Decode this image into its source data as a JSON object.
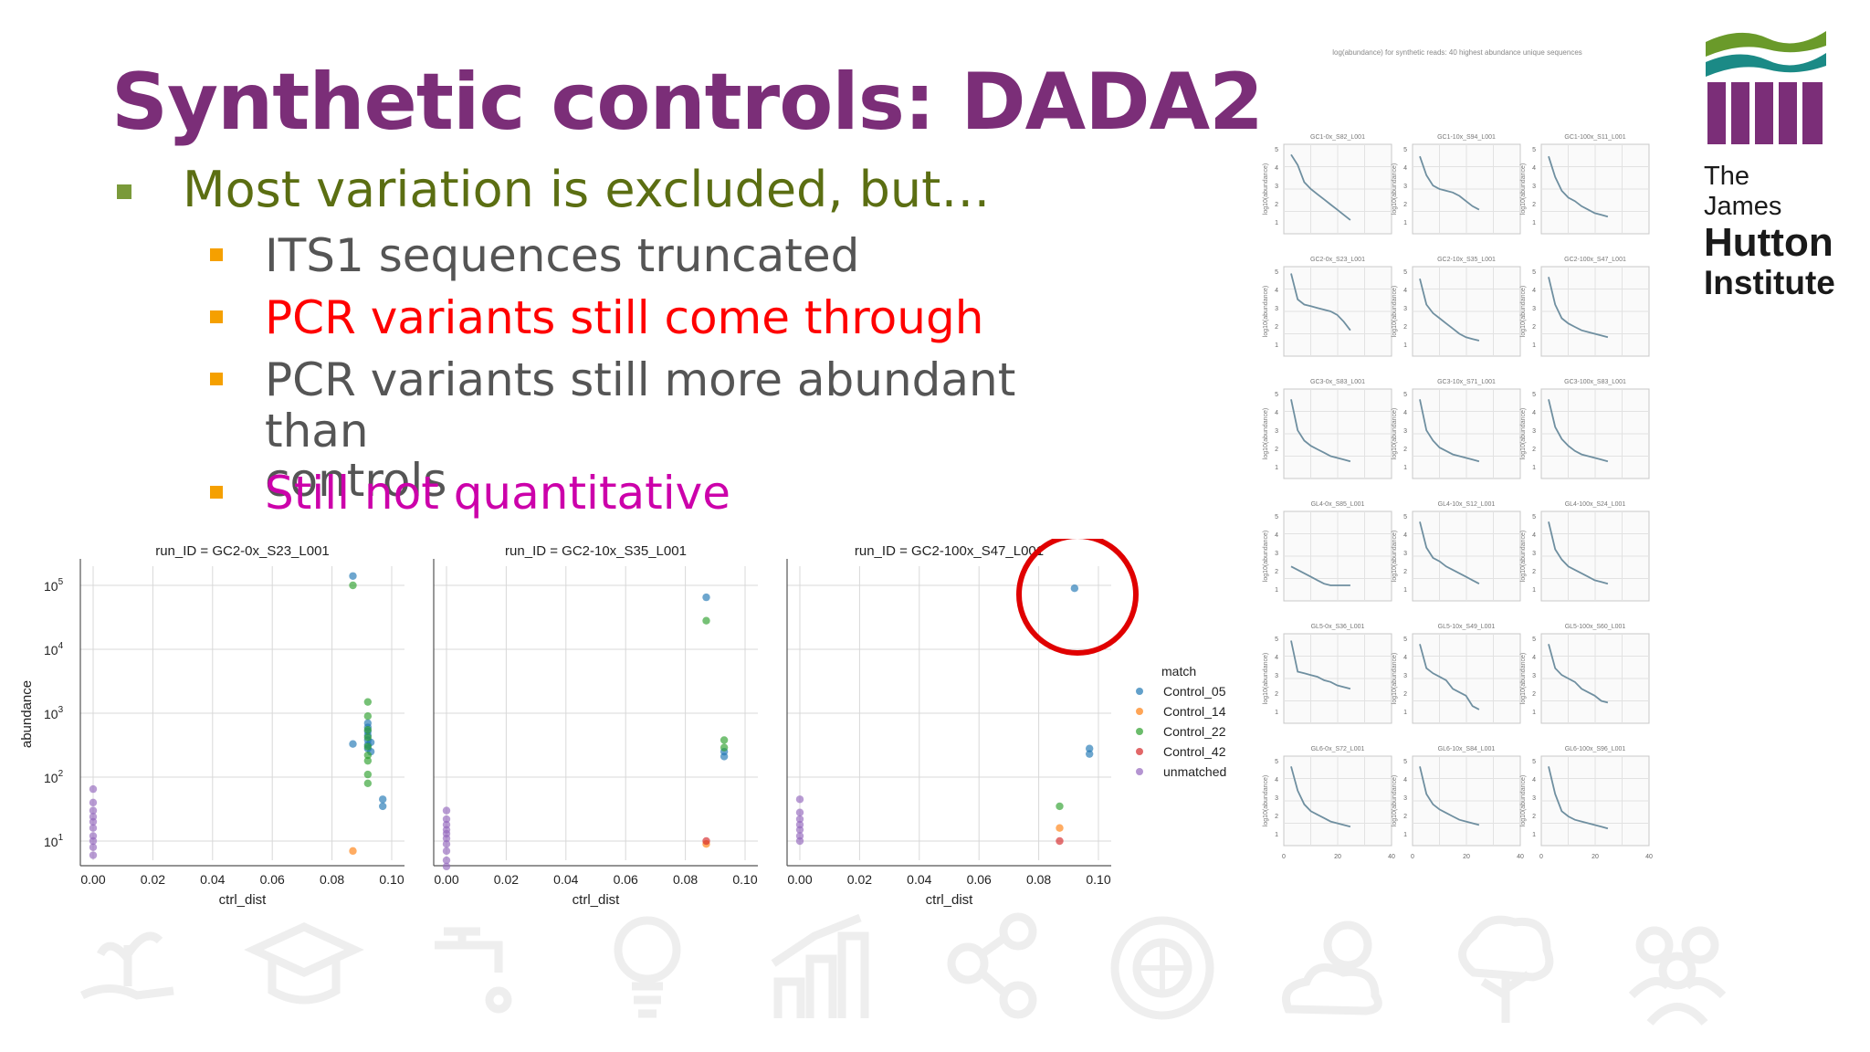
{
  "slide": {
    "title": "Synthetic controls: DADA2",
    "title_color": "#7b2e78"
  },
  "bullets": [
    {
      "level": 1,
      "text": "Most variation is excluded, but…",
      "color": "#5b6e12",
      "marker_color": "#7a9a3a"
    },
    {
      "level": 2,
      "text": "ITS1 sequences truncated",
      "color": "#555555",
      "marker_color": "#f5a000"
    },
    {
      "level": 2,
      "text": "PCR variants still come through",
      "color": "#ff0000",
      "marker_color": "#f5a000"
    },
    {
      "level": 2,
      "text": "PCR variants still more abundant than",
      "text2": "controls",
      "color": "#555555",
      "marker_color": "#f5a000"
    },
    {
      "level": 2,
      "text": "Still not quantitative",
      "color": "#cc00aa",
      "marker_color": "#f5a000"
    }
  ],
  "scatter_figure": {
    "ylabel": "abundance",
    "xlabel": "ctrl_dist",
    "x_ticks": [
      "0.00",
      "0.02",
      "0.04",
      "0.06",
      "0.08",
      "0.10"
    ],
    "y_ticks": [
      {
        "base": "10",
        "exp": "5",
        "value": 100000
      },
      {
        "base": "10",
        "exp": "4",
        "value": 10000
      },
      {
        "base": "10",
        "exp": "3",
        "value": 1000
      },
      {
        "base": "10",
        "exp": "2",
        "value": 100
      },
      {
        "base": "10",
        "exp": "1",
        "value": 10
      }
    ],
    "legend": {
      "title": "match",
      "entries": [
        {
          "label": "Control_05",
          "color": "#1f77b4"
        },
        {
          "label": "Control_14",
          "color": "#ff7f0e"
        },
        {
          "label": "Control_22",
          "color": "#2ca02c"
        },
        {
          "label": "Control_42",
          "color": "#d62728"
        },
        {
          "label": "unmatched",
          "color": "#9467bd"
        }
      ]
    },
    "highlight_circle_color": "#e00000"
  },
  "chart_data": [
    {
      "type": "scatter",
      "title": "run_ID = GC2-0x_S23_L001",
      "xlabel": "ctrl_dist",
      "ylabel": "abundance",
      "xlim": [
        0,
        0.1
      ],
      "ylim_log10": [
        0.7,
        5.3
      ],
      "y_scale": "log",
      "series": [
        {
          "name": "Control_05",
          "points": [
            [
              0.087,
              140000
            ],
            [
              0.092,
              700
            ],
            [
              0.092,
              600
            ],
            [
              0.092,
              520
            ],
            [
              0.092,
              450
            ],
            [
              0.092,
              380
            ],
            [
              0.092,
              320
            ],
            [
              0.092,
              280
            ],
            [
              0.093,
              250
            ],
            [
              0.093,
              350
            ],
            [
              0.087,
              330
            ],
            [
              0.097,
              45
            ],
            [
              0.097,
              35
            ]
          ]
        },
        {
          "name": "Control_14",
          "points": [
            [
              0.087,
              7
            ]
          ]
        },
        {
          "name": "Control_22",
          "points": [
            [
              0.087,
              100000
            ],
            [
              0.092,
              1500
            ],
            [
              0.092,
              900
            ],
            [
              0.092,
              550
            ],
            [
              0.092,
              420
            ],
            [
              0.092,
              300
            ],
            [
              0.092,
              220
            ],
            [
              0.092,
              180
            ],
            [
              0.092,
              110
            ],
            [
              0.092,
              80
            ]
          ]
        },
        {
          "name": "unmatched",
          "points": [
            [
              0,
              65
            ],
            [
              0,
              40
            ],
            [
              0,
              30
            ],
            [
              0,
              24
            ],
            [
              0,
              20
            ],
            [
              0,
              16
            ],
            [
              0,
              12
            ],
            [
              0,
              10
            ],
            [
              0,
              8
            ],
            [
              0,
              6
            ]
          ]
        }
      ]
    },
    {
      "type": "scatter",
      "title": "run_ID = GC2-10x_S35_L001",
      "xlabel": "ctrl_dist",
      "ylabel": "",
      "xlim": [
        0,
        0.1
      ],
      "ylim_log10": [
        0.7,
        5.3
      ],
      "y_scale": "log",
      "series": [
        {
          "name": "Control_05",
          "points": [
            [
              0.087,
              65000
            ],
            [
              0.093,
              250
            ],
            [
              0.093,
              210
            ]
          ]
        },
        {
          "name": "Control_14",
          "points": [
            [
              0.087,
              9
            ]
          ]
        },
        {
          "name": "Control_22",
          "points": [
            [
              0.087,
              28000
            ],
            [
              0.093,
              380
            ],
            [
              0.093,
              290
            ]
          ]
        },
        {
          "name": "Control_42",
          "points": [
            [
              0.087,
              10
            ]
          ]
        },
        {
          "name": "unmatched",
          "points": [
            [
              0,
              30
            ],
            [
              0,
              22
            ],
            [
              0,
              18
            ],
            [
              0,
              15
            ],
            [
              0,
              13
            ],
            [
              0,
              11
            ],
            [
              0,
              9
            ],
            [
              0,
              7
            ],
            [
              0,
              5
            ],
            [
              0,
              4
            ]
          ]
        }
      ]
    },
    {
      "type": "scatter",
      "title": "run_ID = GC2-100x_S47_L001",
      "xlabel": "ctrl_dist",
      "ylabel": "",
      "xlim": [
        0,
        0.1
      ],
      "ylim_log10": [
        0.7,
        5.3
      ],
      "y_scale": "log",
      "series": [
        {
          "name": "Control_05",
          "points": [
            [
              0.092,
              90000
            ],
            [
              0.097,
              280
            ],
            [
              0.097,
              230
            ]
          ]
        },
        {
          "name": "Control_14",
          "points": [
            [
              0.087,
              16
            ]
          ]
        },
        {
          "name": "Control_22",
          "points": [
            [
              0.087,
              35
            ]
          ]
        },
        {
          "name": "Control_42",
          "points": [
            [
              0.087,
              10
            ]
          ]
        },
        {
          "name": "unmatched",
          "points": [
            [
              0,
              45
            ],
            [
              0,
              28
            ],
            [
              0,
              22
            ],
            [
              0,
              18
            ],
            [
              0,
              15
            ],
            [
              0,
              12
            ],
            [
              0,
              10
            ]
          ]
        }
      ]
    }
  ],
  "grid_figure": {
    "title": "log(abundance) for synthetic reads: 40 highest abundance unique sequences",
    "ylabel": "log10(abundance)",
    "y_ticks": [
      "5",
      "4",
      "3",
      "2",
      "1"
    ],
    "x_ticks": [
      "0",
      "20",
      "40"
    ],
    "line_color": "#6f8fa0",
    "panels": [
      {
        "title": "GC1-0x_S82_L001",
        "curve": [
          4.6,
          4.0,
          3.0,
          2.6,
          2.3,
          2.0,
          1.7,
          1.4,
          1.1,
          0.8
        ]
      },
      {
        "title": "GC1-10x_S94_L001",
        "curve": [
          4.5,
          3.4,
          2.8,
          2.6,
          2.5,
          2.4,
          2.2,
          1.9,
          1.6,
          1.4
        ]
      },
      {
        "title": "GC1-100x_S11_L001",
        "curve": [
          4.5,
          3.3,
          2.5,
          2.1,
          1.9,
          1.6,
          1.4,
          1.2,
          1.1,
          1.0
        ]
      },
      {
        "title": "GC2-0x_S23_L001",
        "curve": [
          4.8,
          3.3,
          3.0,
          2.9,
          2.8,
          2.7,
          2.6,
          2.4,
          2.0,
          1.5
        ]
      },
      {
        "title": "GC2-10x_S35_L001",
        "curve": [
          4.5,
          3.0,
          2.5,
          2.2,
          1.9,
          1.6,
          1.3,
          1.1,
          1.0,
          0.9
        ]
      },
      {
        "title": "GC2-100x_S47_L001",
        "curve": [
          4.6,
          3.0,
          2.2,
          1.9,
          1.7,
          1.5,
          1.4,
          1.3,
          1.2,
          1.1
        ]
      },
      {
        "title": "GC3-0x_S83_L001",
        "curve": [
          4.6,
          2.8,
          2.2,
          1.9,
          1.7,
          1.5,
          1.3,
          1.2,
          1.1,
          1.0
        ]
      },
      {
        "title": "GC3-10x_S71_L001",
        "curve": [
          4.6,
          2.8,
          2.2,
          1.8,
          1.6,
          1.4,
          1.3,
          1.2,
          1.1,
          1.0
        ]
      },
      {
        "title": "GC3-100x_S83_L001",
        "curve": [
          4.6,
          3.0,
          2.3,
          1.9,
          1.6,
          1.4,
          1.3,
          1.2,
          1.1,
          1.0
        ]
      },
      {
        "title": "GL4-0x_S85_L001",
        "curve": [
          2.0,
          1.8,
          1.6,
          1.4,
          1.2,
          1.0,
          0.9,
          0.9,
          0.9,
          0.9
        ]
      },
      {
        "title": "GL4-10x_S12_L001",
        "curve": [
          4.6,
          3.1,
          2.5,
          2.3,
          2.0,
          1.8,
          1.6,
          1.4,
          1.2,
          1.0
        ]
      },
      {
        "title": "GL4-100x_S24_L001",
        "curve": [
          4.6,
          3.0,
          2.4,
          2.0,
          1.8,
          1.6,
          1.4,
          1.2,
          1.1,
          1.0
        ]
      },
      {
        "title": "GL5-0x_S36_L001",
        "curve": [
          4.8,
          3.0,
          2.9,
          2.8,
          2.7,
          2.5,
          2.4,
          2.2,
          2.1,
          2.0
        ]
      },
      {
        "title": "GL5-10x_S49_L001",
        "curve": [
          4.6,
          3.2,
          2.9,
          2.7,
          2.5,
          2.0,
          1.8,
          1.6,
          1.0,
          0.8
        ]
      },
      {
        "title": "GL5-100x_S60_L001",
        "curve": [
          4.6,
          3.2,
          2.8,
          2.6,
          2.4,
          2.0,
          1.8,
          1.6,
          1.3,
          1.2
        ]
      },
      {
        "title": "GL6-0x_S72_L001",
        "curve": [
          4.6,
          3.2,
          2.4,
          2.0,
          1.8,
          1.6,
          1.4,
          1.3,
          1.2,
          1.1
        ]
      },
      {
        "title": "GL6-10x_S84_L001",
        "curve": [
          4.6,
          3.0,
          2.4,
          2.1,
          1.9,
          1.7,
          1.5,
          1.4,
          1.3,
          1.2
        ]
      },
      {
        "title": "GL6-100x_S96_L001",
        "curve": [
          4.6,
          3.0,
          2.0,
          1.7,
          1.5,
          1.4,
          1.3,
          1.2,
          1.1,
          1.0
        ]
      }
    ]
  },
  "logo": {
    "line1": "The James",
    "line2": "Hutton",
    "line3": "Institute",
    "green": "#6a9a2a",
    "teal": "#1b8a86",
    "purple": "#7b2e78"
  },
  "footer_icons": [
    {
      "name": "plant-in-hand-icon"
    },
    {
      "name": "graduation-cap-icon"
    },
    {
      "name": "water-tap-icon"
    },
    {
      "name": "light-bulb-icon"
    },
    {
      "name": "bar-chart-icon"
    },
    {
      "name": "network-nodes-icon"
    },
    {
      "name": "globe-cycle-icon"
    },
    {
      "name": "weather-cloud-sun-icon"
    },
    {
      "name": "tree-icon"
    },
    {
      "name": "people-group-icon"
    }
  ]
}
